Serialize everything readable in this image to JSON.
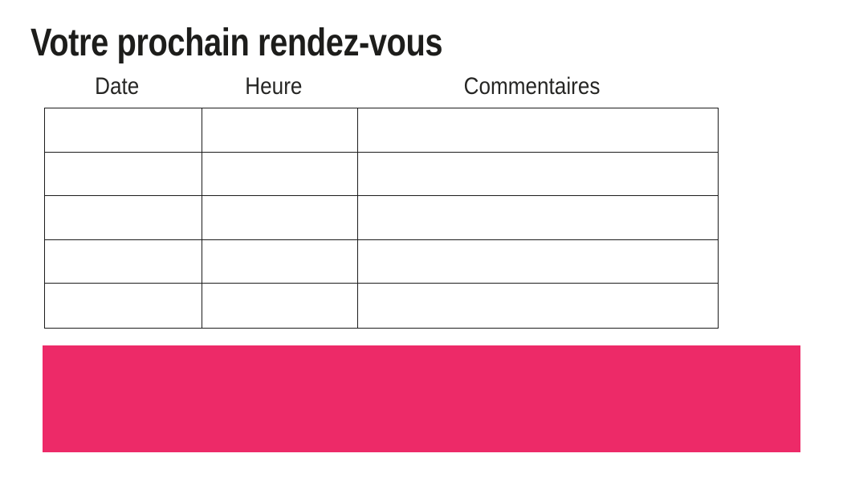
{
  "page": {
    "title": "Votre prochain rendez-vous"
  },
  "table": {
    "columns": [
      {
        "label": "Date"
      },
      {
        "label": "Heure"
      },
      {
        "label": "Commentaires"
      }
    ],
    "rows": [
      [
        "",
        "",
        ""
      ],
      [
        "",
        "",
        ""
      ],
      [
        "",
        "",
        ""
      ],
      [
        "",
        "",
        ""
      ],
      [
        "",
        "",
        ""
      ]
    ]
  },
  "banner": {
    "color": "#ED2A68"
  },
  "colors": {
    "accent_pink": "#ED2A68",
    "table_border": "#1c1c1c",
    "title_text": "#1d1d1b",
    "header_text": "#262624"
  }
}
